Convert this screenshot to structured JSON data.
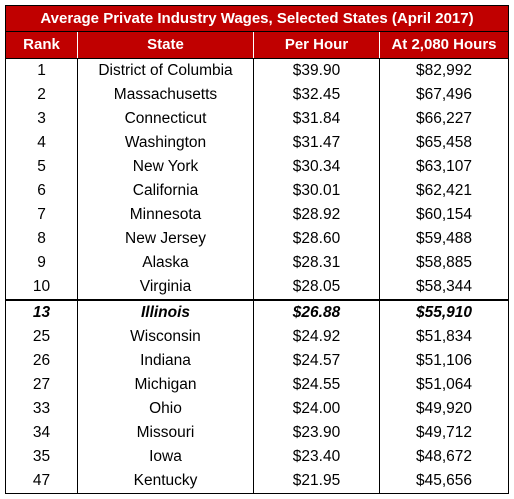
{
  "title": "Average Private Industry Wages, Selected States (April 2017)",
  "columns": [
    "Rank",
    "State",
    "Per Hour",
    "At 2,080 Hours"
  ],
  "rows": [
    {
      "rank": "1",
      "state": "District of Columbia",
      "hour": "$39.90",
      "annual": "$82,992"
    },
    {
      "rank": "2",
      "state": "Massachusetts",
      "hour": "$32.45",
      "annual": "$67,496"
    },
    {
      "rank": "3",
      "state": "Connecticut",
      "hour": "$31.84",
      "annual": "$66,227"
    },
    {
      "rank": "4",
      "state": "Washington",
      "hour": "$31.47",
      "annual": "$65,458"
    },
    {
      "rank": "5",
      "state": "New York",
      "hour": "$30.34",
      "annual": "$63,107"
    },
    {
      "rank": "6",
      "state": "California",
      "hour": "$30.01",
      "annual": "$62,421"
    },
    {
      "rank": "7",
      "state": "Minnesota",
      "hour": "$28.92",
      "annual": "$60,154"
    },
    {
      "rank": "8",
      "state": "New Jersey",
      "hour": "$28.60",
      "annual": "$59,488"
    },
    {
      "rank": "9",
      "state": "Alaska",
      "hour": "$28.31",
      "annual": "$58,885"
    },
    {
      "rank": "10",
      "state": "Virginia",
      "hour": "$28.05",
      "annual": "$58,344"
    },
    {
      "rank": "13",
      "state": "Illinois",
      "hour": "$26.88",
      "annual": "$55,910",
      "highlight": true
    },
    {
      "rank": "25",
      "state": "Wisconsin",
      "hour": "$24.92",
      "annual": "$51,834"
    },
    {
      "rank": "26",
      "state": "Indiana",
      "hour": "$24.57",
      "annual": "$51,106"
    },
    {
      "rank": "27",
      "state": "Michigan",
      "hour": "$24.55",
      "annual": "$51,064"
    },
    {
      "rank": "33",
      "state": "Ohio",
      "hour": "$24.00",
      "annual": "$49,920"
    },
    {
      "rank": "34",
      "state": "Missouri",
      "hour": "$23.90",
      "annual": "$49,712"
    },
    {
      "rank": "35",
      "state": "Iowa",
      "hour": "$23.40",
      "annual": "$48,672"
    },
    {
      "rank": "47",
      "state": "Kentucky",
      "hour": "$21.95",
      "annual": "$45,656"
    }
  ],
  "colors": {
    "header_bg": "#c00000",
    "header_text": "#ffffff"
  }
}
